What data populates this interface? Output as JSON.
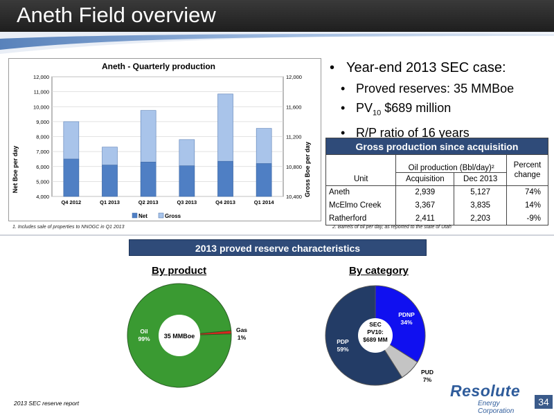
{
  "header": {
    "title": "Aneth Field overview"
  },
  "chart_data": {
    "type": "bar",
    "title": "Aneth - Quarterly production",
    "ylabel": "Net Boe per day",
    "ylabel_right": "Gross Boe per day",
    "categories": [
      "Q4 2012",
      "Q1 2013",
      "Q2 2013",
      "Q3 2013",
      "Q4 2013",
      "Q1 2014"
    ],
    "ylim": [
      4000,
      12000
    ],
    "ylim_right": [
      10400,
      12000
    ],
    "yticks": [
      "4,000",
      "5,000",
      "6,000",
      "7,000",
      "8,000",
      "9,000",
      "10,000",
      "11,000",
      "12,000"
    ],
    "yticks_right": [
      "10,400",
      "10,800",
      "11,200",
      "11,600",
      "12,000"
    ],
    "series": [
      {
        "name": "Net",
        "values": [
          6500,
          6100,
          6300,
          6050,
          6350,
          6200
        ],
        "color": "#4f7fc4"
      },
      {
        "name": "Gross",
        "values": [
          9000,
          7300,
          9750,
          7800,
          10850,
          8550
        ],
        "color": "#a9c4ea"
      }
    ],
    "legend": "bottom"
  },
  "chart_footnote": "1.  Includes sale of properties to NNOGC in Q1 2013",
  "bullets": {
    "main": "Year-end 2013 SEC case:",
    "proved": "Proved reserves: 35 MMBoe",
    "pv_prefix": "PV",
    "pv_sub": "10",
    "pv_rest": " $689 million",
    "rp": "R/P ratio of 16 years"
  },
  "table": {
    "title": "Gross production since acquisition",
    "group_header": "Oil production (Bbl/day)²",
    "col_unit": "Unit",
    "col_acq": "Acquisition",
    "col_dec": "Dec 2013",
    "col_pct": "Percent change",
    "rows": [
      {
        "unit": "Aneth",
        "acq": "2,939",
        "dec": "5,127",
        "pct": "74%"
      },
      {
        "unit": "McElmo Creek",
        "acq": "3,367",
        "dec": "3,835",
        "pct": "14%"
      },
      {
        "unit": "Ratherford",
        "acq": "2,411",
        "dec": "2,203",
        "pct": "-9%"
      }
    ],
    "footnote": "2.  Barrels of oil per day, as reported to the state of Utah"
  },
  "reserve_banner": "2013 proved reserve characteristics",
  "pie_product": {
    "title": "By product",
    "center": "35 MMBoe",
    "slices": [
      {
        "label": "Oil",
        "pct": "99%",
        "value": 99,
        "color": "#3a9a32"
      },
      {
        "label": "Gas",
        "pct": "1%",
        "value": 1,
        "color": "#d8271f"
      }
    ]
  },
  "pie_category": {
    "title": "By category",
    "center_line1": "SEC",
    "center_line2": "PV10:",
    "center_line3": "$689 MM",
    "slices": [
      {
        "label": "PDNP",
        "pct": "34%",
        "value": 34,
        "color": "#1010f0"
      },
      {
        "label": "PUD",
        "pct": "7%",
        "value": 7,
        "color": "#c4c4c4"
      },
      {
        "label": "PDP",
        "pct": "59%",
        "value": 59,
        "color": "#233c66"
      }
    ]
  },
  "footer": {
    "source": "2013 SEC reserve report",
    "page": "34",
    "logo_main": "Resolute",
    "logo_sub": "Energy Corporation"
  }
}
